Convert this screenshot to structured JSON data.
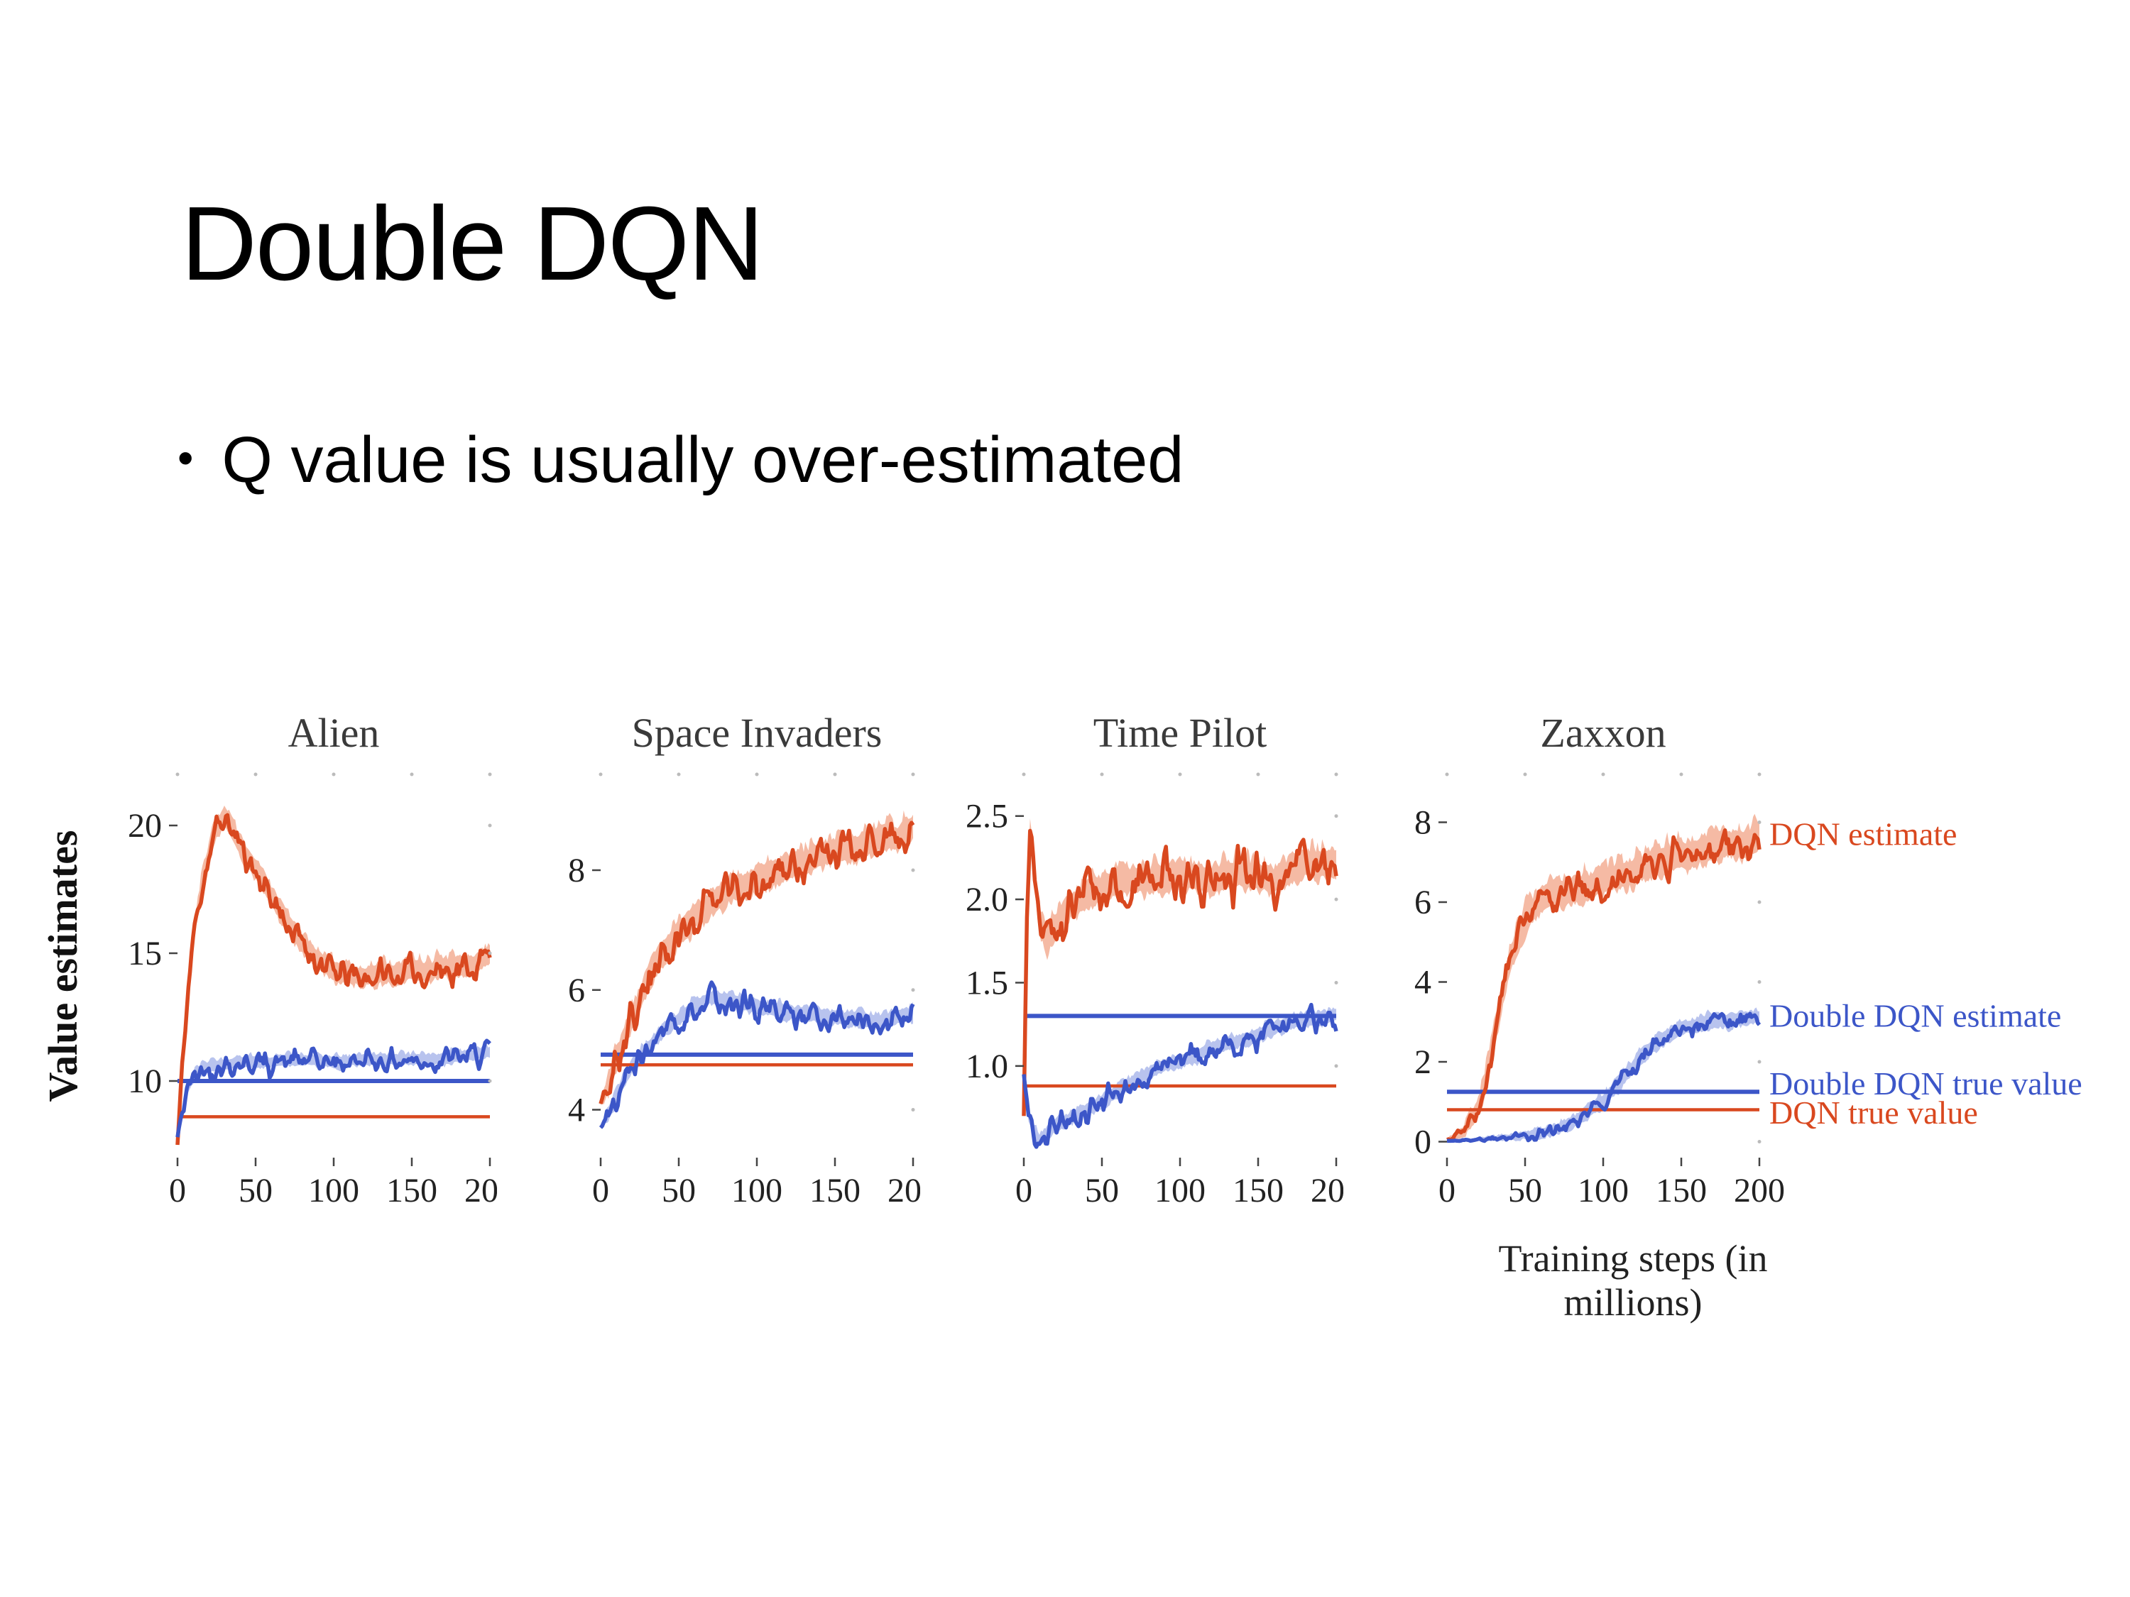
{
  "slide": {
    "title": "Double DQN",
    "bullet": "Q value is usually over-estimated"
  },
  "chart_data": {
    "type": "line",
    "xlabel": "Training steps (in millions)",
    "ylabel": "Value estimates",
    "xlim": [
      0,
      200
    ],
    "x_ticks": [
      0,
      50,
      100,
      150,
      200
    ],
    "colors": {
      "dqn": "#d9481f",
      "double_dqn": "#3c56c8",
      "dqn_band": "#f3a98d",
      "double_dqn_band": "#a6b4ea"
    },
    "right_labels": [
      {
        "text": "DQN estimate",
        "series": "dqn",
        "y": 7.7
      },
      {
        "text": "Double DQN estimate",
        "series": "double_dqn",
        "y": 3.15
      },
      {
        "text": "Double DQN true value",
        "series": "double_dqn",
        "y": 1.45
      },
      {
        "text": "DQN true value",
        "series": "dqn",
        "y": 0.72
      }
    ],
    "plots": [
      {
        "title": "Alien",
        "ylim": [
          7,
          22
        ],
        "y_ticks": [
          10,
          15,
          20
        ],
        "tick_format": "int",
        "dqn_true_value": 8.6,
        "double_dqn_true_value": 10.0,
        "series": {
          "dqn_estimate": {
            "x": [
              0,
              3,
              6,
              10,
              15,
              20,
              25,
              30,
              35,
              40,
              50,
              60,
              70,
              80,
              90,
              100,
              110,
              120,
              130,
              140,
              150,
              160,
              170,
              180,
              190,
              200
            ],
            "y": [
              7.5,
              10.5,
              13,
              15.5,
              17.5,
              18.8,
              19.8,
              20.3,
              19.8,
              19.2,
              18.2,
              17.2,
              16.2,
              15.3,
              14.7,
              14.2,
              14.1,
              14.0,
              14.2,
              14.1,
              14.3,
              14.2,
              14.4,
              14.4,
              14.5,
              14.9
            ],
            "noise": 0.45,
            "band": 1.0,
            "noise_onset": 4
          },
          "double_dqn_estimate": {
            "x": [
              0,
              3,
              6,
              10,
              15,
              20,
              30,
              40,
              60,
              80,
              100,
              120,
              140,
              160,
              180,
              200
            ],
            "y": [
              7.8,
              8.8,
              9.6,
              10.1,
              10.4,
              10.5,
              10.6,
              10.7,
              10.7,
              10.8,
              10.7,
              10.8,
              10.8,
              10.8,
              10.9,
              11.1
            ],
            "noise": 0.35,
            "band": 0.55,
            "noise_onset": 4
          }
        }
      },
      {
        "title": "Space Invaders",
        "ylim": [
          3.2,
          9.6
        ],
        "y_ticks": [
          4,
          6,
          8
        ],
        "tick_format": "int",
        "dqn_true_value": 4.75,
        "double_dqn_true_value": 4.92,
        "series": {
          "dqn_estimate": {
            "x": [
              0,
              5,
              10,
              20,
              30,
              40,
              50,
              60,
              70,
              80,
              90,
              100,
              110,
              120,
              130,
              140,
              150,
              160,
              170,
              180,
              190,
              200
            ],
            "y": [
              4.1,
              4.4,
              4.8,
              5.5,
              6.1,
              6.6,
              6.9,
              7.2,
              7.4,
              7.6,
              7.7,
              7.8,
              7.9,
              8.0,
              8.1,
              8.2,
              8.3,
              8.3,
              8.4,
              8.5,
              8.5,
              8.7
            ],
            "noise": 0.25,
            "band": 0.55,
            "noise_onset": 5
          },
          "double_dqn_estimate": {
            "x": [
              0,
              5,
              10,
              20,
              30,
              40,
              50,
              60,
              70,
              80,
              90,
              100,
              120,
              140,
              160,
              180,
              200
            ],
            "y": [
              3.7,
              3.9,
              4.2,
              4.7,
              5.0,
              5.3,
              5.5,
              5.7,
              5.85,
              5.8,
              5.75,
              5.7,
              5.6,
              5.55,
              5.5,
              5.45,
              5.6
            ],
            "noise": 0.18,
            "band": 0.3,
            "noise_onset": 5
          }
        }
      },
      {
        "title": "Time Pilot",
        "ylim": [
          0.45,
          2.75
        ],
        "y_ticks": [
          1.0,
          1.5,
          2.0,
          2.5
        ],
        "tick_format": "1f",
        "dqn_true_value": 0.88,
        "double_dqn_true_value": 1.3,
        "series": {
          "dqn_estimate": {
            "x": [
              0,
              2,
              4,
              7,
              10,
              15,
              20,
              25,
              30,
              40,
              50,
              60,
              80,
              100,
              120,
              140,
              160,
              180,
              200
            ],
            "y": [
              0.7,
              1.9,
              2.4,
              2.1,
              1.85,
              1.75,
              1.8,
              1.9,
              1.95,
              2.0,
              2.05,
              2.1,
              2.1,
              2.15,
              2.1,
              2.15,
              2.1,
              2.2,
              2.2
            ],
            "noise": 0.11,
            "band": 0.22,
            "noise_onset": 2
          },
          "double_dqn_estimate": {
            "x": [
              0,
              3,
              6,
              10,
              15,
              20,
              30,
              40,
              50,
              60,
              70,
              80,
              90,
              100,
              110,
              120,
              130,
              140,
              150,
              160,
              170,
              180,
              190,
              200
            ],
            "y": [
              0.95,
              0.7,
              0.6,
              0.55,
              0.6,
              0.63,
              0.68,
              0.73,
              0.78,
              0.84,
              0.9,
              0.95,
              1.0,
              1.02,
              1.05,
              1.1,
              1.12,
              1.15,
              1.18,
              1.22,
              1.25,
              1.27,
              1.28,
              1.3
            ],
            "noise": 0.06,
            "band": 0.1,
            "noise_onset": 2
          }
        }
      },
      {
        "title": "Zaxxon",
        "ylim": [
          -0.4,
          9.2
        ],
        "y_ticks": [
          0,
          2,
          4,
          6,
          8
        ],
        "tick_format": "int",
        "dqn_true_value": 0.8,
        "double_dqn_true_value": 1.25,
        "series": {
          "dqn_estimate": {
            "x": [
              0,
              10,
              20,
              25,
              30,
              35,
              40,
              45,
              50,
              60,
              70,
              80,
              90,
              100,
              110,
              120,
              130,
              140,
              150,
              160,
              170,
              180,
              190,
              200
            ],
            "y": [
              0.05,
              0.2,
              0.8,
              1.5,
              2.5,
              3.5,
              4.4,
              5.0,
              5.5,
              6.0,
              6.2,
              6.2,
              6.3,
              6.5,
              6.6,
              6.7,
              6.9,
              7.0,
              7.1,
              7.2,
              7.3,
              7.4,
              7.4,
              7.6
            ],
            "noise": 0.3,
            "band": 0.9,
            "noise_onset": 25
          },
          "double_dqn_estimate": {
            "x": [
              0,
              20,
              40,
              60,
              70,
              80,
              90,
              100,
              110,
              120,
              130,
              140,
              150,
              160,
              170,
              180,
              190,
              200
            ],
            "y": [
              0.02,
              0.05,
              0.1,
              0.2,
              0.3,
              0.45,
              0.7,
              1.0,
              1.4,
              1.9,
              2.3,
              2.6,
              2.8,
              2.9,
              3.0,
              3.0,
              3.05,
              3.1
            ],
            "noise": 0.18,
            "band": 0.45,
            "noise_onset": 90
          }
        }
      }
    ]
  }
}
